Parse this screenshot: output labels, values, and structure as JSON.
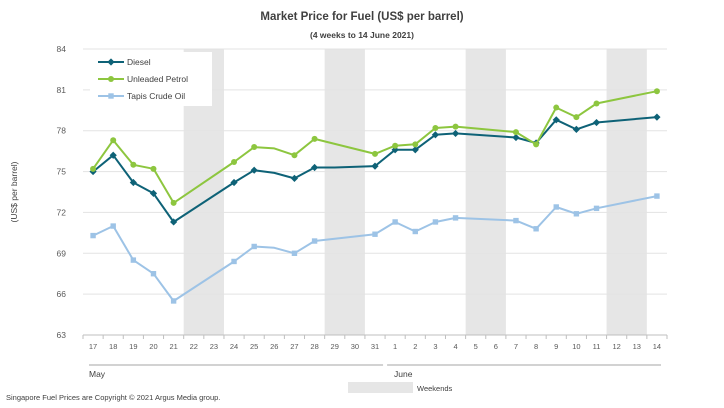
{
  "chart_data": {
    "type": "line",
    "title": "Market Price for Fuel (US$  per barrel)",
    "subtitle": "(4 weeks to 14 June 2021)",
    "ylabel": "(US$ per barrel)",
    "xlabel": "",
    "ylim": [
      63,
      84
    ],
    "yticks": [
      63,
      66,
      69,
      72,
      75,
      78,
      81,
      84
    ],
    "grid": "horizontal",
    "legend_position": "top-left",
    "categories": [
      "17",
      "18",
      "19",
      "20",
      "21",
      "22",
      "23",
      "24",
      "25",
      "26",
      "27",
      "28",
      "29",
      "30",
      "31",
      "1",
      "2",
      "3",
      "4",
      "5",
      "6",
      "7",
      "8",
      "9",
      "10",
      "11",
      "12",
      "13",
      "14"
    ],
    "months": [
      {
        "label": "May",
        "start": 0,
        "end": 14
      },
      {
        "label": "June",
        "start": 15,
        "end": 28
      }
    ],
    "weekend_label": "Weekends",
    "weekend_bands": [
      [
        5,
        6
      ],
      [
        12,
        13
      ],
      [
        19,
        20
      ],
      [
        26,
        27
      ]
    ],
    "series": [
      {
        "name": "Diesel",
        "color": "#0e6277",
        "marker": "diamond",
        "values": [
          75.0,
          76.2,
          74.2,
          73.4,
          71.3,
          null,
          null,
          74.2,
          75.1,
          74.9,
          74.5,
          75.3,
          75.3,
          null,
          75.4,
          76.6,
          76.6,
          77.7,
          77.8,
          null,
          null,
          77.5,
          77.1,
          78.8,
          78.1,
          78.6,
          null,
          null,
          79.0
        ],
        "markers": [
          true,
          true,
          true,
          true,
          true,
          false,
          false,
          true,
          true,
          false,
          true,
          true,
          false,
          false,
          true,
          true,
          true,
          true,
          true,
          false,
          false,
          true,
          true,
          true,
          true,
          true,
          false,
          false,
          true
        ]
      },
      {
        "name": "Unleaded Petrol",
        "color": "#8dc63f",
        "marker": "circle",
        "values": [
          75.2,
          77.3,
          75.5,
          75.2,
          72.7,
          null,
          null,
          75.7,
          76.8,
          76.7,
          76.2,
          77.4,
          null,
          null,
          76.3,
          76.9,
          77.0,
          78.2,
          78.3,
          null,
          null,
          77.9,
          77.0,
          79.7,
          79.0,
          80.0,
          null,
          null,
          80.9
        ],
        "markers": [
          true,
          true,
          true,
          true,
          true,
          false,
          false,
          true,
          true,
          false,
          true,
          true,
          false,
          false,
          true,
          true,
          true,
          true,
          true,
          false,
          false,
          true,
          true,
          true,
          true,
          true,
          false,
          false,
          true
        ]
      },
      {
        "name": "Tapis Crude Oil",
        "color": "#9dc3e6",
        "marker": "square",
        "values": [
          70.3,
          71.0,
          68.5,
          67.5,
          65.5,
          null,
          null,
          68.4,
          69.5,
          69.4,
          69.0,
          69.9,
          null,
          null,
          70.4,
          71.3,
          70.6,
          71.3,
          71.6,
          null,
          null,
          71.4,
          70.8,
          72.4,
          71.9,
          72.3,
          null,
          null,
          73.2
        ],
        "markers": [
          true,
          true,
          true,
          true,
          true,
          false,
          false,
          true,
          true,
          false,
          true,
          true,
          false,
          false,
          true,
          true,
          true,
          true,
          true,
          false,
          false,
          true,
          true,
          true,
          true,
          true,
          false,
          false,
          true
        ]
      }
    ]
  },
  "footer": {
    "copyright": "Singapore  Fuel Prices are Copyright © 2021  Argus Media group."
  }
}
